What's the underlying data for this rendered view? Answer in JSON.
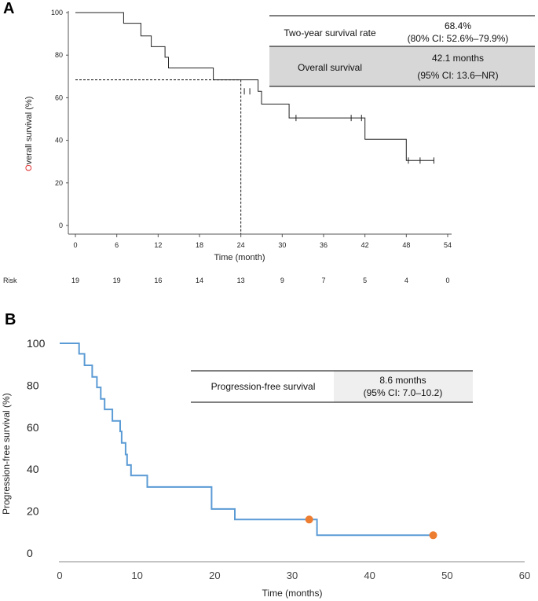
{
  "chart_data": [
    {
      "panel": "A",
      "type": "line",
      "style": "kaplan-meier",
      "title": "",
      "xlabel": "Time (month)",
      "ylabel_first_letter": "O",
      "ylabel_rest": "verall survival (%)",
      "xlim": [
        0,
        54
      ],
      "ylim": [
        0,
        100
      ],
      "xticks": [
        "0",
        "6",
        "12",
        "18",
        "24",
        "30",
        "36",
        "42",
        "48",
        "54"
      ],
      "yticks": [
        "0",
        "20",
        "40",
        "60",
        "80",
        "100"
      ],
      "steps": [
        [
          0,
          100
        ],
        [
          7,
          100
        ],
        [
          7,
          95
        ],
        [
          9.5,
          95
        ],
        [
          9.5,
          89
        ],
        [
          11,
          89
        ],
        [
          11,
          84
        ],
        [
          13,
          84
        ],
        [
          13,
          79
        ],
        [
          13.5,
          79
        ],
        [
          13.5,
          74
        ],
        [
          20,
          74
        ],
        [
          20,
          68.4
        ],
        [
          26.5,
          68.4
        ],
        [
          26.5,
          63
        ],
        [
          27,
          63
        ],
        [
          27,
          57
        ],
        [
          31,
          57
        ],
        [
          31,
          50.5
        ],
        [
          42,
          50.5
        ],
        [
          42,
          40.5
        ],
        [
          48,
          40.5
        ],
        [
          48,
          30.5
        ],
        [
          52,
          30.5
        ]
      ],
      "censor_marks": [
        [
          24.5,
          63
        ],
        [
          25.3,
          63
        ],
        [
          32,
          50.5
        ],
        [
          40,
          50.5
        ],
        [
          41.5,
          50.5
        ],
        [
          48.3,
          30.5
        ],
        [
          50,
          30.5
        ],
        [
          52,
          30.5
        ]
      ],
      "reference": {
        "x": 24,
        "y": 68.4
      },
      "risk": {
        "label": "Risk",
        "times": [
          0,
          6,
          12,
          18,
          24,
          30,
          36,
          42,
          48,
          54
        ],
        "values": [
          "19",
          "19",
          "16",
          "14",
          "13",
          "9",
          "7",
          "5",
          "4",
          "0"
        ]
      },
      "table": {
        "row1_label": "Two-year survival rate",
        "row1_value_line1": "68.4%",
        "row1_value_line2": "(80% CI: 52.6%–79.9%)",
        "row2_label": "Overall survival",
        "row2_value_line1": "42.1 months",
        "row2_value_line2": "(95% CI: 13.6─NR)"
      }
    },
    {
      "panel": "B",
      "type": "line",
      "style": "kaplan-meier",
      "title": "",
      "xlabel": "Time (months)",
      "ylabel": "Progression-free survival (%)",
      "xlim": [
        0,
        60
      ],
      "ylim": [
        0,
        100
      ],
      "xticks": [
        "0",
        "10",
        "20",
        "30",
        "40",
        "50",
        "60"
      ],
      "yticks": [
        "0",
        "20",
        "40",
        "60",
        "80",
        "100"
      ],
      "steps": [
        [
          0,
          100
        ],
        [
          2.5,
          100
        ],
        [
          2.5,
          95
        ],
        [
          3.2,
          95
        ],
        [
          3.2,
          89.5
        ],
        [
          4.2,
          89.5
        ],
        [
          4.2,
          84
        ],
        [
          4.8,
          84
        ],
        [
          4.8,
          79
        ],
        [
          5.3,
          79
        ],
        [
          5.3,
          73.5
        ],
        [
          5.8,
          73.5
        ],
        [
          5.8,
          68.5
        ],
        [
          6.8,
          68.5
        ],
        [
          6.8,
          63
        ],
        [
          7.8,
          63
        ],
        [
          7.8,
          58
        ],
        [
          8.0,
          58
        ],
        [
          8.0,
          52.5
        ],
        [
          8.5,
          52.5
        ],
        [
          8.5,
          47
        ],
        [
          8.7,
          47
        ],
        [
          8.7,
          42
        ],
        [
          9.2,
          42
        ],
        [
          9.2,
          37
        ],
        [
          11.3,
          37
        ],
        [
          11.3,
          31.5
        ],
        [
          19.6,
          31.5
        ],
        [
          19.6,
          21
        ],
        [
          22.6,
          21
        ],
        [
          22.6,
          16
        ],
        [
          33.2,
          16
        ],
        [
          33.2,
          8.5
        ],
        [
          48.2,
          8.5
        ]
      ],
      "censor_marks": [
        [
          32.2,
          16
        ],
        [
          48.2,
          8.5
        ]
      ],
      "table": {
        "row1_label": "Progression-free survival",
        "row1_value_line1": "8.6 months",
        "row1_value_line2": "(95% CI: 7.0–10.2)"
      }
    }
  ],
  "panel_labels": {
    "a": "A",
    "b": "B"
  },
  "colors": {
    "curve_b": "#5b9bd5",
    "censor_b": "#ed7d31",
    "accent_o": "#e02020",
    "table_gray": "#d7d7d7",
    "table_gray_b": "#efefef"
  }
}
